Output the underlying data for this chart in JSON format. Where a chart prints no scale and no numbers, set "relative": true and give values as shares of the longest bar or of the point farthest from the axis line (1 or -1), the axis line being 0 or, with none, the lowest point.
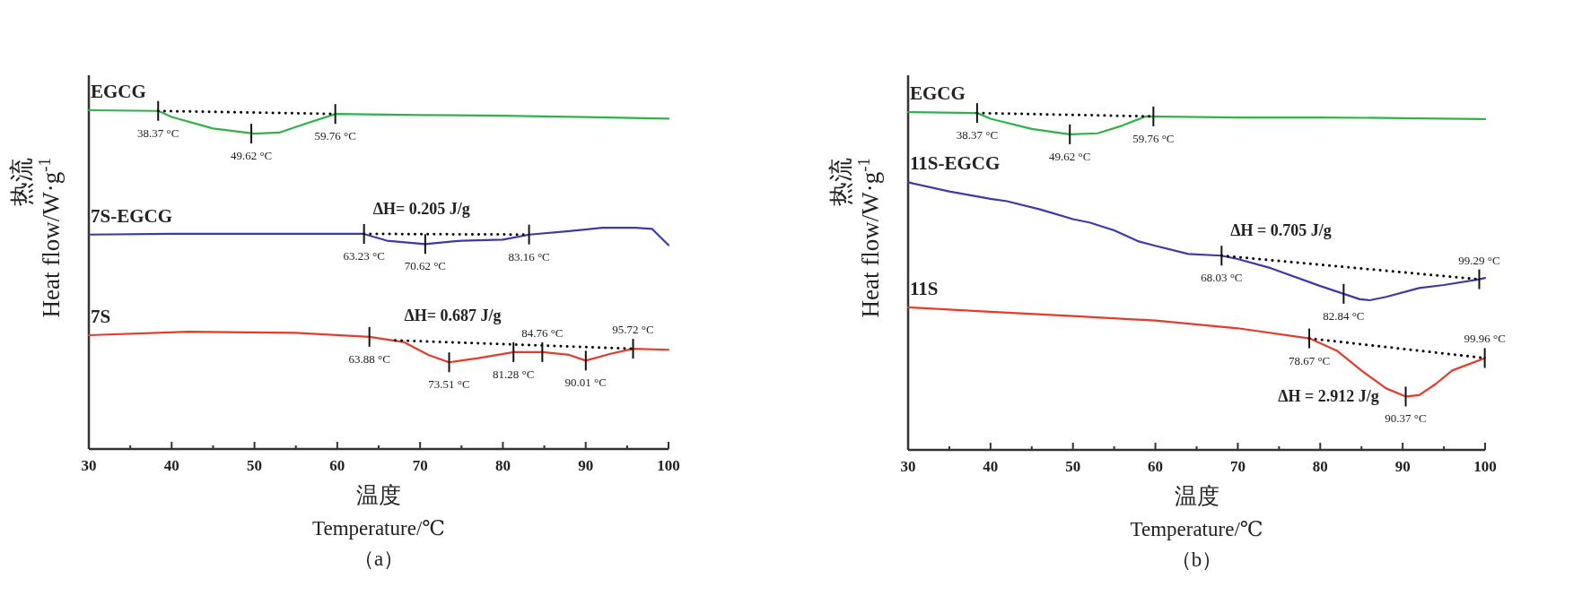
{
  "chart_data": [
    {
      "type": "line",
      "relative": true,
      "xlabel": "温度\nTemperature/℃",
      "ylabel": "热流\nHeat flow/W·g$^{-1}$",
      "xlim": [
        30,
        100
      ],
      "xticks": [
        30,
        {
          "value": 35,
          "label": null
        },
        40,
        {
          "value": 45,
          "label": null
        },
        50,
        {
          "value": 55,
          "label": null
        },
        60,
        {
          "value": 65,
          "label": null
        },
        70,
        {
          "value": 75,
          "label": null
        },
        80,
        {
          "value": 85,
          "label": null
        },
        90,
        {
          "value": 95,
          "label": null
        },
        100
      ],
      "series": [
        {
          "name": "EGCG",
          "color": "#2db34a",
          "x": [
            30,
            38.4,
            40,
            45,
            50,
            53,
            56,
            59.8,
            70,
            80,
            90,
            100
          ],
          "values": [
            1.0,
            0.998,
            0.98,
            0.946,
            0.931,
            0.934,
            0.959,
            0.989,
            0.986,
            0.984,
            0.98,
            0.975
          ]
        },
        {
          "name": "7S-EGCG",
          "color": "#3a3aa8",
          "x": [
            30,
            40,
            50,
            60,
            63.2,
            66,
            70.6,
            75,
            80,
            83.2,
            88,
            92,
            96,
            98,
            100
          ],
          "values": [
            0.633,
            0.635,
            0.635,
            0.635,
            0.635,
            0.615,
            0.605,
            0.615,
            0.618,
            0.633,
            0.643,
            0.653,
            0.653,
            0.65,
            0.602
          ]
        },
        {
          "name": "7S",
          "color": "#e8392b",
          "x": [
            30,
            42,
            55,
            63.9,
            68,
            71,
            73.5,
            77,
            81.3,
            84.8,
            88,
            90,
            93,
            95.7,
            100
          ],
          "values": [
            0.336,
            0.346,
            0.343,
            0.331,
            0.316,
            0.278,
            0.256,
            0.268,
            0.286,
            0.286,
            0.278,
            0.261,
            0.281,
            0.296,
            0.293
          ]
        },
        {
          "type": "line",
          "color": "#000000",
          "line_style": "dotted",
          "x": [
            38.37,
            59.76
          ],
          "values": [
            0.998,
            0.989
          ]
        },
        {
          "type": "line",
          "color": "#000000",
          "line_style": "dotted",
          "x": [
            63.23,
            83.16
          ],
          "values": [
            0.635,
            0.633
          ]
        },
        {
          "type": "line",
          "color": "#000000",
          "line_style": "dotted",
          "x": [
            67,
            95.72
          ],
          "values": [
            0.321,
            0.296
          ]
        }
      ],
      "annotations": [
        {
          "text": "38.37 °C",
          "x": 38.37,
          "y": 0.998
        },
        {
          "text": "49.62 °C",
          "x": 49.62,
          "y": 0.931
        },
        {
          "text": "59.76 °C",
          "x": 59.76,
          "y": 0.989
        },
        "ΔH= 0.205 J/g",
        {
          "text": "63.23 °C",
          "x": 63.23,
          "y": 0.635
        },
        {
          "text": "70.62 °C",
          "x": 70.62,
          "y": 0.605
        },
        {
          "text": "83.16 °C",
          "x": 83.16,
          "y": 0.633
        },
        "ΔH= 0.687 J/g",
        {
          "text": "63.88 °C",
          "x": 63.88,
          "y": 0.331
        },
        {
          "text": "73.51 °C",
          "x": 73.51,
          "y": 0.256
        },
        {
          "text": "81.28 °C",
          "x": 81.28,
          "y": 0.286
        },
        {
          "text": "84.76 °C",
          "x": 84.76,
          "y": 0.286
        },
        {
          "text": "90.01 °C",
          "x": 90.01,
          "y": 0.261
        },
        {
          "text": "95.72 °C",
          "x": 95.72,
          "y": 0.296
        },
        "（a）"
      ]
    },
    {
      "type": "line",
      "relative": true,
      "xlabel": "温度\nTemperature/℃",
      "ylabel": "热流\nHeat flow/W·g$^{-1}$",
      "xlim": [
        30,
        100
      ],
      "xticks": [
        30,
        {
          "value": 35,
          "label": null
        },
        40,
        {
          "value": 45,
          "label": null
        },
        50,
        {
          "value": 55,
          "label": null
        },
        60,
        {
          "value": 65,
          "label": null
        },
        70,
        {
          "value": 75,
          "label": null
        },
        80,
        {
          "value": 85,
          "label": null
        },
        90,
        {
          "value": 95,
          "label": null
        },
        100
      ],
      "series": [
        {
          "name": "EGCG",
          "color": "#2db34a",
          "x": [
            30,
            38.4,
            40,
            45,
            49.6,
            53,
            56,
            58.8,
            70,
            80,
            90,
            100
          ],
          "values": [
            1.0,
            0.997,
            0.98,
            0.95,
            0.934,
            0.937,
            0.96,
            0.987,
            0.984,
            0.984,
            0.982,
            0.979
          ]
        },
        {
          "name": "11S-EGCG",
          "color": "#3a3aa8",
          "x": [
            30,
            35,
            40,
            42,
            46,
            50,
            52,
            55,
            58,
            60,
            64,
            68,
            70,
            74,
            80,
            84.8,
            86,
            88,
            92,
            95,
            99.3,
            100
          ],
          "values": [
            0.792,
            0.765,
            0.743,
            0.736,
            0.712,
            0.683,
            0.673,
            0.65,
            0.617,
            0.604,
            0.58,
            0.575,
            0.565,
            0.538,
            0.485,
            0.446,
            0.443,
            0.453,
            0.479,
            0.488,
            0.505,
            0.509
          ]
        },
        {
          "name": "11S",
          "color": "#e8392b",
          "x": [
            30,
            40,
            50,
            60,
            70,
            78.7,
            82,
            85,
            88,
            90.4,
            92,
            94,
            96,
            100
          ],
          "values": [
            0.422,
            0.409,
            0.396,
            0.383,
            0.36,
            0.33,
            0.294,
            0.235,
            0.182,
            0.158,
            0.162,
            0.195,
            0.235,
            0.272
          ]
        },
        {
          "type": "line",
          "color": "#000000",
          "line_style": "dotted",
          "x": [
            38.37,
            59.76
          ],
          "values": [
            0.997,
            0.987
          ]
        },
        {
          "type": "line",
          "color": "#000000",
          "line_style": "dotted",
          "x": [
            68.03,
            99.29
          ],
          "values": [
            0.575,
            0.505
          ]
        },
        {
          "type": "line",
          "color": "#000000",
          "line_style": "dotted",
          "x": [
            78.67,
            99.96
          ],
          "values": [
            0.33,
            0.272
          ]
        }
      ],
      "annotations": [
        {
          "text": "38.37 °C",
          "x": 38.37,
          "y": 0.997
        },
        {
          "text": "49.62 °C",
          "x": 49.62,
          "y": 0.934
        },
        {
          "text": "59.76 °C",
          "x": 59.76,
          "y": 0.987
        },
        "ΔH = 0.705 J/g",
        {
          "text": "68.03 °C",
          "x": 68.03,
          "y": 0.575
        },
        {
          "text": "82.84 °C",
          "x": 82.84,
          "y": 0.462
        },
        {
          "text": "99.29 °C",
          "x": 99.29,
          "y": 0.505
        },
        {
          "text": "78.67 °C",
          "x": 78.67,
          "y": 0.33
        },
        {
          "text": "90.37 °C",
          "x": 90.37,
          "y": 0.158
        },
        {
          "text": "99.96 °C",
          "x": 99.96,
          "y": 0.272
        },
        "ΔH = 2.912 J/g",
        "（b）"
      ]
    }
  ]
}
